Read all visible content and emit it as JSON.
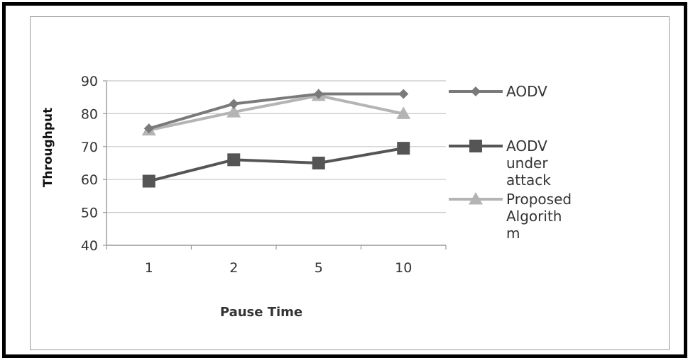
{
  "chart_data": {
    "type": "line",
    "title": "",
    "xlabel": "Pause Time",
    "ylabel": "Throughput",
    "categories": [
      "1",
      "2",
      "5",
      "10"
    ],
    "ylim": [
      40,
      90
    ],
    "yticks": [
      40,
      50,
      60,
      70,
      80,
      90
    ],
    "grid": "horizontal",
    "legend_position": "right",
    "series": [
      {
        "name": "AODV",
        "legend_lines": [
          "AODV"
        ],
        "values": [
          75.5,
          83,
          86,
          86
        ],
        "marker": "diamond",
        "color": "#7a7a7a"
      },
      {
        "name": "AODV under attack",
        "legend_lines": [
          "AODV",
          "under",
          "attack"
        ],
        "values": [
          59.5,
          66,
          65,
          69.5
        ],
        "marker": "square",
        "color": "#555555"
      },
      {
        "name": "Proposed Algorithm",
        "legend_lines": [
          "Proposed",
          "Algorith",
          "m"
        ],
        "values": [
          75,
          80.5,
          85.5,
          80
        ],
        "marker": "triangle",
        "color": "#b4b4b4"
      }
    ]
  }
}
